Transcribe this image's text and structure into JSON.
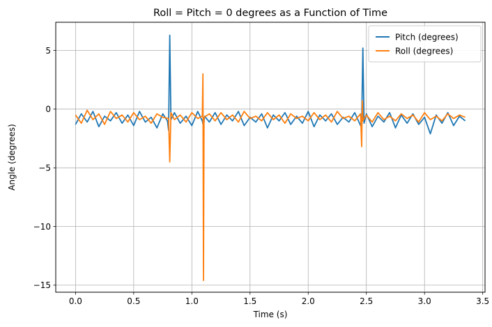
{
  "chart_data": {
    "type": "line",
    "title": "Roll = Pitch = 0 degrees as a Function of Time",
    "xlabel": "Time (s)",
    "ylabel": "Angle (degrees)",
    "xlim": [
      -0.17,
      3.52
    ],
    "ylim": [
      -15.6,
      7.4
    ],
    "x_ticks": [
      0.0,
      0.5,
      1.0,
      1.5,
      2.0,
      2.5,
      3.0,
      3.5
    ],
    "x_tick_labels": [
      "0.0",
      "0.5",
      "1.0",
      "1.5",
      "2.0",
      "2.5",
      "3.0",
      "3.5"
    ],
    "y_ticks": [
      5,
      0,
      -5,
      -10,
      -15
    ],
    "y_tick_labels": [
      "5",
      "0",
      "−5",
      "−10",
      "−15"
    ],
    "grid": true,
    "legend_position": "top-right",
    "series": [
      {
        "name": "Pitch (degrees)",
        "color": "#1f77b4",
        "x": [
          0.0,
          0.05,
          0.1,
          0.15,
          0.2,
          0.25,
          0.3,
          0.35,
          0.4,
          0.45,
          0.5,
          0.55,
          0.6,
          0.65,
          0.7,
          0.75,
          0.79,
          0.8,
          0.81,
          0.82,
          0.85,
          0.9,
          0.95,
          1.0,
          1.05,
          1.09,
          1.1,
          1.11,
          1.15,
          1.2,
          1.25,
          1.3,
          1.35,
          1.4,
          1.45,
          1.5,
          1.55,
          1.6,
          1.65,
          1.7,
          1.75,
          1.8,
          1.85,
          1.9,
          1.95,
          2.0,
          2.05,
          2.1,
          2.15,
          2.2,
          2.25,
          2.3,
          2.35,
          2.4,
          2.45,
          2.46,
          2.47,
          2.48,
          2.5,
          2.55,
          2.6,
          2.65,
          2.7,
          2.75,
          2.8,
          2.85,
          2.9,
          2.95,
          3.0,
          3.05,
          3.1,
          3.15,
          3.2,
          3.25,
          3.3,
          3.35
        ],
        "y": [
          -1.3,
          -0.4,
          -1.1,
          -0.2,
          -1.5,
          -0.6,
          -1.0,
          -0.3,
          -1.2,
          -0.5,
          -1.4,
          -0.2,
          -1.1,
          -0.7,
          -1.6,
          -0.4,
          -1.0,
          -1.8,
          6.3,
          -0.9,
          -0.3,
          -1.2,
          -0.6,
          -1.4,
          -0.2,
          -1.0,
          -1.5,
          -0.6,
          -1.1,
          -0.3,
          -1.3,
          -0.5,
          -1.0,
          -0.2,
          -1.4,
          -0.7,
          -1.1,
          -0.4,
          -1.6,
          -0.5,
          -1.0,
          -0.3,
          -1.3,
          -0.6,
          -1.2,
          -0.2,
          -1.5,
          -0.5,
          -1.0,
          -0.4,
          -1.3,
          -0.7,
          -1.1,
          -0.3,
          -1.4,
          -1.0,
          5.2,
          -1.2,
          -0.4,
          -1.5,
          -0.6,
          -1.1,
          -0.3,
          -1.6,
          -0.5,
          -1.2,
          -0.4,
          -1.3,
          -0.7,
          -2.1,
          -0.5,
          -1.2,
          -0.3,
          -1.4,
          -0.6,
          -1.0
        ]
      },
      {
        "name": "Roll (degrees)",
        "color": "#ff7f0e",
        "x": [
          0.0,
          0.05,
          0.1,
          0.15,
          0.2,
          0.25,
          0.3,
          0.35,
          0.4,
          0.45,
          0.5,
          0.55,
          0.6,
          0.65,
          0.7,
          0.75,
          0.8,
          0.81,
          0.82,
          0.85,
          0.9,
          0.95,
          1.0,
          1.05,
          1.09,
          1.095,
          1.1,
          1.105,
          1.15,
          1.2,
          1.25,
          1.3,
          1.35,
          1.4,
          1.45,
          1.5,
          1.55,
          1.6,
          1.65,
          1.7,
          1.75,
          1.8,
          1.85,
          1.9,
          1.95,
          2.0,
          2.05,
          2.1,
          2.15,
          2.2,
          2.25,
          2.3,
          2.35,
          2.4,
          2.45,
          2.46,
          2.465,
          2.47,
          2.5,
          2.55,
          2.6,
          2.65,
          2.7,
          2.75,
          2.8,
          2.85,
          2.9,
          2.95,
          3.0,
          3.05,
          3.1,
          3.15,
          3.2,
          3.25,
          3.3,
          3.35
        ],
        "y": [
          -0.5,
          -1.2,
          -0.1,
          -0.9,
          -0.4,
          -1.3,
          -0.2,
          -0.8,
          -0.5,
          -1.1,
          -0.3,
          -0.9,
          -0.6,
          -1.2,
          -0.4,
          -0.7,
          -0.8,
          -4.5,
          -0.3,
          -0.9,
          -0.5,
          -1.1,
          -0.3,
          -0.8,
          -0.6,
          3.0,
          -14.6,
          -0.7,
          -0.4,
          -1.0,
          -0.3,
          -0.9,
          -0.5,
          -1.1,
          -0.2,
          -0.8,
          -0.6,
          -1.0,
          -0.3,
          -0.9,
          -0.5,
          -1.2,
          -0.4,
          -0.8,
          -0.6,
          -1.0,
          -0.3,
          -0.9,
          -0.5,
          -1.1,
          -0.2,
          -0.8,
          -0.6,
          -1.0,
          -0.4,
          -3.2,
          0.7,
          -1.0,
          -0.5,
          -1.1,
          -0.3,
          -0.9,
          -0.6,
          -1.0,
          -0.4,
          -0.8,
          -0.5,
          -1.1,
          -0.3,
          -0.9,
          -0.6,
          -1.0,
          -0.4,
          -0.8,
          -0.5,
          -0.7
        ]
      }
    ]
  }
}
